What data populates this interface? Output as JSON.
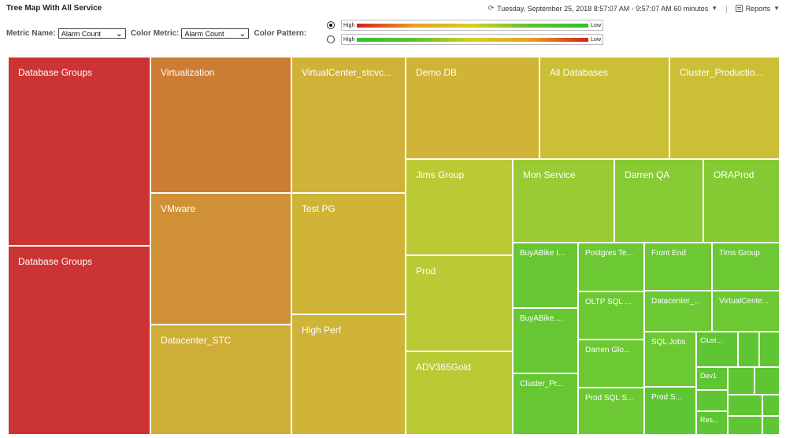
{
  "header": {
    "title": "Tree Map With All Service",
    "time_range": "Tuesday, September 25, 2018 8:57:07 AM - 9:57:07 AM 60 minutes",
    "reports_label": "Reports"
  },
  "controls": {
    "metric_name_label": "Metric Name:",
    "metric_name_value": "Alarm Count",
    "color_metric_label": "Color Metric:",
    "color_metric_value": "Alarm Count",
    "color_pattern_label": "Color Pattern:",
    "pattern_high_label": "High",
    "pattern_low_label": "Low",
    "selected_pattern": 1
  },
  "colors": {
    "red": "#cc3333",
    "orange": "#cd7c33",
    "amber": "#cfa137",
    "yellow": "#cbc035",
    "lime": "#b9ca35",
    "green": "#7fc933",
    "bright_green": "#66c733"
  },
  "tiles": [
    {
      "label": "Database Groups",
      "color": "#cc3333"
    },
    {
      "label": "Database Groups",
      "color": "#cc3333"
    },
    {
      "label": "Virtualization",
      "color": "#cd7c33"
    },
    {
      "label": "VMware",
      "color": "#cf9036"
    },
    {
      "label": "Datacenter_STC",
      "color": "#cfae38"
    },
    {
      "label": "VirtualCenter_stcvc...",
      "color": "#cfb237"
    },
    {
      "label": "Test PG",
      "color": "#cfb337"
    },
    {
      "label": "High Perf",
      "color": "#cfb437"
    },
    {
      "label": "Demo DB",
      "color": "#cfb437"
    },
    {
      "label": "All Databases",
      "color": "#cbc035"
    },
    {
      "label": "Cluster_Productio...",
      "color": "#cbc035"
    },
    {
      "label": "Jims Group",
      "color": "#bbc935"
    },
    {
      "label": "Prod",
      "color": "#b9ca35"
    },
    {
      "label": "ADV365Gold",
      "color": "#b9ca35"
    },
    {
      "label": "Mon Service",
      "color": "#9acb34"
    },
    {
      "label": "Darren QA",
      "color": "#86cb33"
    },
    {
      "label": "ORAProd",
      "color": "#84cb33"
    },
    {
      "label": "BuyABike I...",
      "color": "#66c733"
    },
    {
      "label": "BuyABike....",
      "color": "#66c733"
    },
    {
      "label": "Cluster_Pr...",
      "color": "#66c733"
    },
    {
      "label": "Postgres Te...",
      "color": "#6cc833"
    },
    {
      "label": "OLTP SQL ...",
      "color": "#6cc833"
    },
    {
      "label": "Darren Glo...",
      "color": "#6cc833"
    },
    {
      "label": "Prod SQL S...",
      "color": "#6cc833"
    },
    {
      "label": "Front End",
      "color": "#6cc833"
    },
    {
      "label": "Datacenter_...",
      "color": "#6cc833"
    },
    {
      "label": "SQL Jobs",
      "color": "#6cc833"
    },
    {
      "label": "Prod S...",
      "color": "#5fc633"
    },
    {
      "label": "Tims Group",
      "color": "#6cc833"
    },
    {
      "label": "VirtualCente...",
      "color": "#6cc833"
    },
    {
      "label": "Clust...",
      "color": "#5fc633"
    },
    {
      "label": "",
      "color": "#5fc633"
    },
    {
      "label": "",
      "color": "#5fc633"
    },
    {
      "label": "Dev1",
      "color": "#5fc633"
    },
    {
      "label": "",
      "color": "#5fc633"
    },
    {
      "label": "",
      "color": "#5fc633"
    },
    {
      "label": "",
      "color": "#5fc633"
    },
    {
      "label": "",
      "color": "#5fc633"
    },
    {
      "label": "",
      "color": "#5fc633"
    },
    {
      "label": "Res...",
      "color": "#5fc633"
    },
    {
      "label": "",
      "color": "#5fc633"
    },
    {
      "label": "",
      "color": "#5fc633"
    }
  ]
}
